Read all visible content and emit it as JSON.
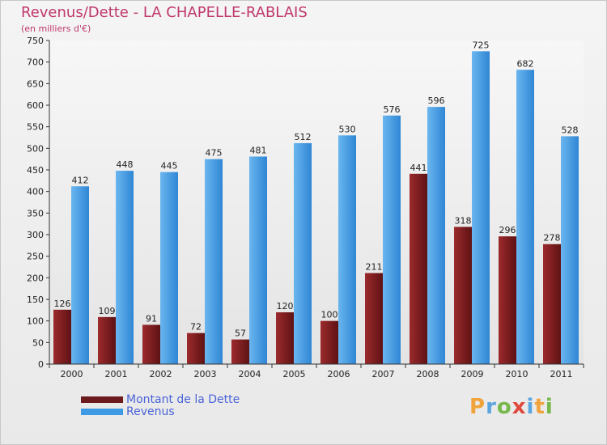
{
  "title": "Revenus/Dette - LA CHAPELLE-RABLAIS",
  "subtitle": "(en milliers d'€)",
  "logo": {
    "letters": [
      "P",
      "r",
      "o",
      "x",
      "i",
      "t",
      "i"
    ],
    "colors": [
      "#f0a33a",
      "#5aa5e0",
      "#77b84a",
      "#e04a3c",
      "#5aa5e0",
      "#f0a33a",
      "#77b84a"
    ]
  },
  "chart_data": {
    "type": "bar",
    "title": "Revenus/Dette - LA CHAPELLE-RABLAIS",
    "ylabel": "(en milliers d'€)",
    "xlabel": "",
    "categories": [
      "2000",
      "2001",
      "2002",
      "2003",
      "2004",
      "2005",
      "2006",
      "2007",
      "2008",
      "2009",
      "2010",
      "2011"
    ],
    "series": [
      {
        "name": "Montant de la Dette",
        "color": "#7a1f22",
        "values": [
          126,
          109,
          91,
          72,
          57,
          120,
          100,
          211,
          441,
          318,
          296,
          278
        ]
      },
      {
        "name": "Revenus",
        "color": "#3f9ae6",
        "values": [
          412,
          448,
          445,
          475,
          481,
          512,
          530,
          576,
          596,
          725,
          682,
          528
        ]
      }
    ],
    "ylim": [
      0,
      750
    ],
    "yticks": [
      0,
      50,
      100,
      150,
      200,
      250,
      300,
      350,
      400,
      450,
      500,
      550,
      600,
      650,
      700,
      750
    ],
    "grid": false,
    "legend": "bottom-left"
  }
}
